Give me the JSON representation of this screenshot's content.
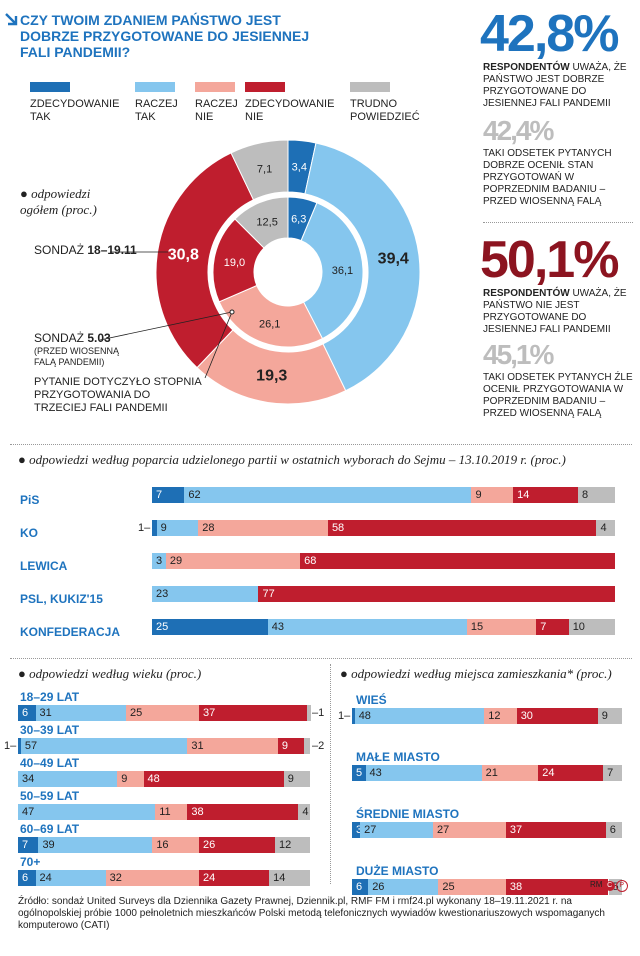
{
  "title": "CZY TWOIM ZDANIEM PAŃSTWO JEST DOBRZE PRZYGOTOWANE DO JESIENNEJ FALI PANDEMII?",
  "legend": [
    {
      "label": "ZDECYDOWANIE\nTAK",
      "color": "#1e6fb5"
    },
    {
      "label": "RACZEJ\nTAK",
      "color": "#85c6ee"
    },
    {
      "label": "RACZEJ\nNIE",
      "color": "#f4a79b"
    },
    {
      "label": "ZDECYDOWANIE\nNIE",
      "color": "#bf1e2e"
    },
    {
      "label": "TRUDNO\nPOWIEDZIEĆ",
      "color": "#bdbdbd"
    }
  ],
  "stats": {
    "s1_big": "42,8%",
    "s1_bold": "RESPONDENTÓW",
    "s1_text": " UWAŻA, ŻE PAŃSTWO JEST DOBRZE PRZYGOTOWANE DO JESIENNEJ FALI PANDEMII",
    "s2_big": "42,4%",
    "s2_text": "TAKI ODSETEK PYTANYCH DOBRZE OCENIŁ STAN PRZYGOTOWAŃ W POPRZEDNIM BADANIU – PRZED WIOSENNĄ FALĄ",
    "s3_big": "50,1%",
    "s3_bold": "RESPONDENTÓW",
    "s3_text": " UWAŻA, ŻE PAŃSTWO NIE JEST PRZYGOTOWANE DO  JESIENNEJ FALI PANDEMII",
    "s4_big": "45,1%",
    "s4_text": "TAKI ODSETEK PYTANYCH ŹLE OCENIŁ PRZYGOTOWANIA W POPRZEDNIM BADANIU – PRZED WIOSENNĄ FALĄ"
  },
  "donut_labels": {
    "overall": "odpowiedzi ogółem (proc.)",
    "outer_pre": "SONDAŻ ",
    "outer_date": "18–19.11",
    "inner_pre": "SONDAŻ ",
    "inner_date": "5.03",
    "inner_note": "(PRZED WIOSENNĄ FALĄ PANDEMII)",
    "question": "PYTANIE DOTYCZYŁO STOPNIA PRZYGOTOWANIA DO TRZECIEJ FALI PANDEMII"
  },
  "sections": {
    "party": "odpowiedzi według poparcia udzielonego partii w ostatnich wyborach do Sejmu – 13.10.2019 r. (proc.)",
    "age": "odpowiedzi według wieku (proc.)",
    "place": "odpowiedzi według miejsca zamieszkania* (proc.)"
  },
  "source": "Źródło: sondaż United Surveys dla Dziennika Gazety Prawnej, Dziennik.pl, RMF FM i rmf24.pl wykonany 18–19.11.2021 r. na ogólnopolskiej próbie 1000 pełnoletnich mieszkańców Polski metodą telefonicznych wywiadów kwestionariuszowych wspomaganych komputerowo (CATI)",
  "credit": "RM",
  "chart_data": [
    {
      "type": "pie",
      "title": "odpowiedzi ogółem (proc.)",
      "categories": [
        "ZDECYDOWANIE TAK",
        "RACZEJ TAK",
        "RACZEJ NIE",
        "ZDECYDOWANIE NIE",
        "TRUDNO POWIEDZIEĆ"
      ],
      "series": [
        {
          "name": "SONDAŻ 18–19.11",
          "values": [
            3.4,
            39.4,
            19.3,
            30.8,
            7.1
          ]
        },
        {
          "name": "SONDAŻ 5.03",
          "values": [
            6.3,
            36.1,
            26.1,
            19.0,
            12.5
          ]
        }
      ]
    },
    {
      "type": "bar",
      "title": "odpowiedzi według poparcia udzielonego partii w ostatnich wyborach do Sejmu – 13.10.2019 r. (proc.)",
      "categories": [
        "PiS",
        "KO",
        "LEWICA",
        "PSL, KUKIZ'15",
        "KONFEDERACJA"
      ],
      "series": [
        {
          "name": "ZDECYDOWANIE TAK",
          "values": [
            7,
            1,
            0,
            0,
            25
          ]
        },
        {
          "name": "RACZEJ TAK",
          "values": [
            62,
            9,
            3,
            23,
            43
          ]
        },
        {
          "name": "RACZEJ NIE",
          "values": [
            9,
            28,
            29,
            0,
            15
          ]
        },
        {
          "name": "ZDECYDOWANIE NIE",
          "values": [
            14,
            58,
            68,
            77,
            7
          ]
        },
        {
          "name": "TRUDNO POWIEDZIEĆ",
          "values": [
            8,
            4,
            0,
            0,
            10
          ]
        }
      ]
    },
    {
      "type": "bar",
      "title": "odpowiedzi według wieku (proc.)",
      "categories": [
        "18–29 LAT",
        "30–39 LAT",
        "40–49 LAT",
        "50–59 LAT",
        "60–69 LAT",
        "70+"
      ],
      "series": [
        {
          "name": "ZDECYDOWANIE TAK",
          "values": [
            6,
            1,
            0,
            0,
            7,
            6
          ]
        },
        {
          "name": "RACZEJ TAK",
          "values": [
            31,
            57,
            34,
            47,
            39,
            24
          ]
        },
        {
          "name": "RACZEJ NIE",
          "values": [
            25,
            31,
            9,
            11,
            16,
            32
          ]
        },
        {
          "name": "ZDECYDOWANIE NIE",
          "values": [
            37,
            9,
            48,
            38,
            26,
            24
          ]
        },
        {
          "name": "TRUDNO POWIEDZIEĆ",
          "values": [
            1,
            2,
            9,
            4,
            12,
            14
          ]
        }
      ]
    },
    {
      "type": "bar",
      "title": "odpowiedzi według miejsca zamieszkania* (proc.)",
      "categories": [
        "WIEŚ",
        "MAŁE MIASTO",
        "ŚREDNIE MIASTO",
        "DUŻE MIASTO"
      ],
      "series": [
        {
          "name": "ZDECYDOWANIE TAK",
          "values": [
            1,
            5,
            3,
            6
          ]
        },
        {
          "name": "RACZEJ TAK",
          "values": [
            48,
            43,
            27,
            26
          ]
        },
        {
          "name": "RACZEJ NIE",
          "values": [
            12,
            21,
            27,
            25
          ]
        },
        {
          "name": "ZDECYDOWANIE NIE",
          "values": [
            30,
            24,
            37,
            38
          ]
        },
        {
          "name": "TRUDNO POWIEDZIEĆ",
          "values": [
            9,
            7,
            6,
            5
          ]
        }
      ]
    }
  ]
}
